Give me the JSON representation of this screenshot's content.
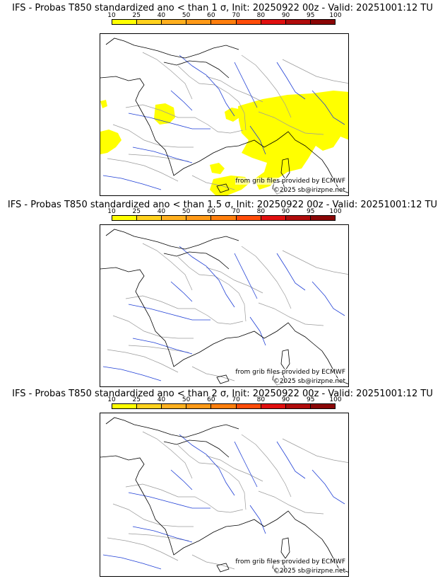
{
  "panels": [
    {
      "title": "IFS - Probas T850  standardized ano < than 1 σ, Init: 20250922 00z - Valid: 20251001:12 TU",
      "has_yellow": true
    },
    {
      "title": "IFS - Probas T850  standardized ano < than 1.5 σ, Init: 20250922 00z - Valid: 20251001:12 TU",
      "has_yellow": false
    },
    {
      "title": "IFS - Probas T850  standardized ano < than 2 σ, Init: 20250922 00z - Valid: 20251001:12 TU",
      "has_yellow": false
    }
  ],
  "scale": {
    "ticks": [
      "10",
      "25",
      "40",
      "50",
      "60",
      "70",
      "80",
      "90",
      "95",
      "100"
    ],
    "colors": [
      "#ffff00",
      "#ffd21e",
      "#ffb01f",
      "#ff9a18",
      "#ff7f0e",
      "#ff4d0a",
      "#e01010",
      "#b00c0c",
      "#8a0606",
      "#5a0000"
    ]
  },
  "credits": {
    "source": "from grib files provided by ECMWF",
    "copyright": "©2025 sb@irizpne.net"
  },
  "colors": {
    "probability_fill": "#ffff00",
    "rivers": "#1f3fd6",
    "borders": "#9a9a9a",
    "coast": "#000000"
  }
}
